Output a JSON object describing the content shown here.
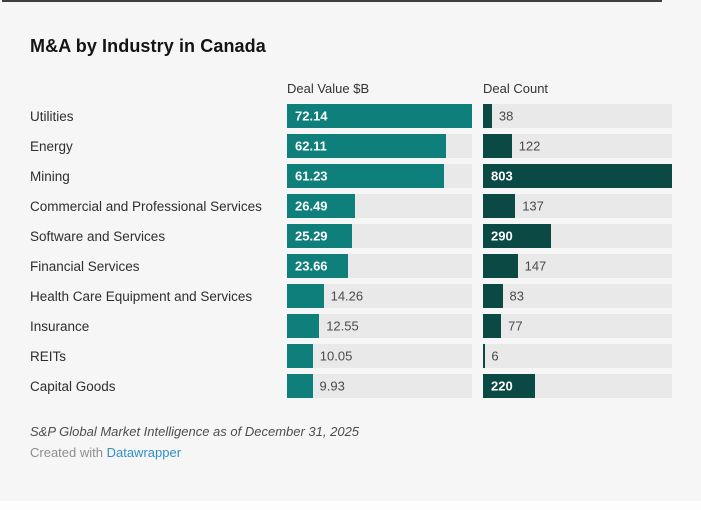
{
  "chart": {
    "title": "M&A by Industry in Canada",
    "columns": {
      "value": "Deal Value $B",
      "count": "Deal Count"
    },
    "notes": "S&P Global Market Intelligence as of December 31, 2025",
    "attribution": {
      "prefix": "Created with ",
      "link": "Datawrapper"
    }
  },
  "chart_data": {
    "type": "bar",
    "orientation": "horizontal",
    "title": "M&A by Industry in Canada",
    "categories": [
      "Utilities",
      "Energy",
      "Mining",
      "Commercial and Professional Services",
      "Software and Services",
      "Financial Services",
      "Health Care Equipment and Services",
      "Insurance",
      "REITs",
      "Capital Goods"
    ],
    "series": [
      {
        "name": "Deal Value $B",
        "values": [
          72.14,
          62.11,
          61.23,
          26.49,
          25.29,
          23.66,
          14.26,
          12.55,
          10.05,
          9.93
        ],
        "axis_max": 72.14,
        "value_format": "2dp",
        "color": "#0e7f7a"
      },
      {
        "name": "Deal Count",
        "values": [
          38,
          122,
          803,
          137,
          290,
          147,
          83,
          77,
          6,
          220
        ],
        "axis_max": 803,
        "value_format": "int",
        "color": "#0b4945"
      }
    ],
    "track_color": "#e9e9e9",
    "grid": false,
    "legend_position": "column-headers"
  },
  "colors": {
    "background": "#f6f6f6",
    "value_bar": "#0e7f7a",
    "count_bar": "#0b4945",
    "bar_track": "#e9e9e9",
    "link_blue": "#2e8fc9",
    "top_rule": "#3f3f3f"
  }
}
